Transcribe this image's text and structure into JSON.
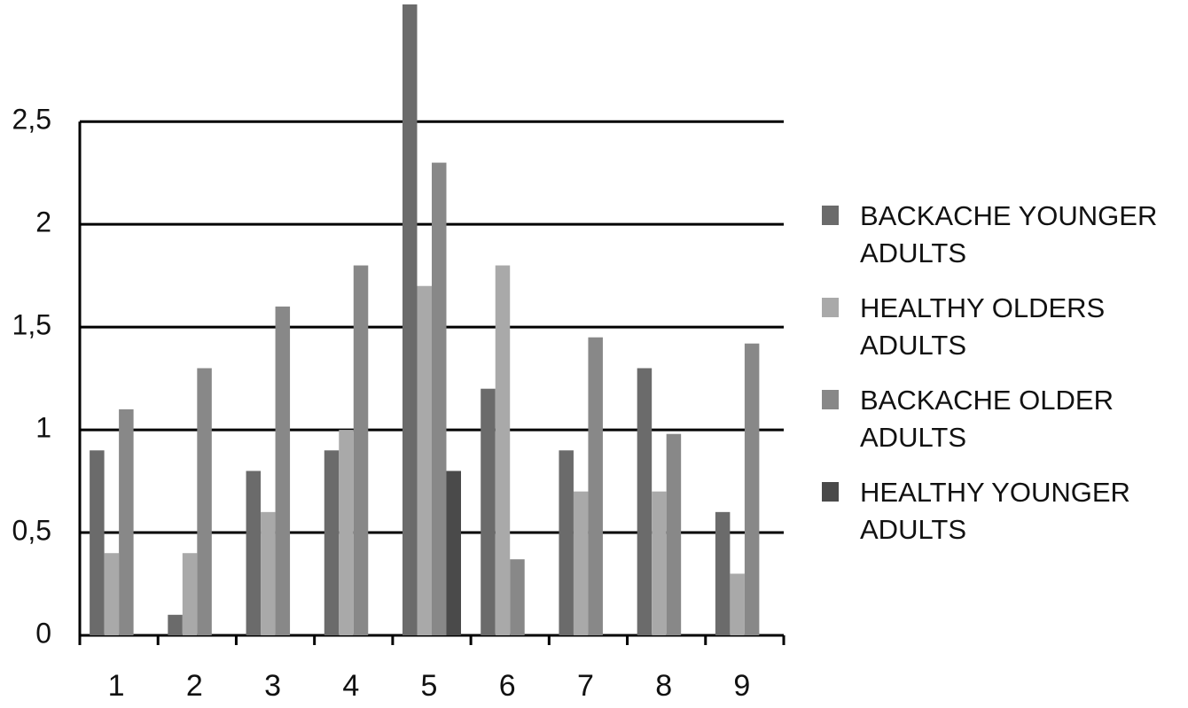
{
  "chart_data": {
    "type": "bar",
    "categories": [
      "1",
      "2",
      "3",
      "4",
      "5",
      "6",
      "7",
      "8",
      "9"
    ],
    "series": [
      {
        "name": "BACKACHE YOUNGER ADULTS",
        "color": "#6b6b6b",
        "values": [
          0.9,
          0.1,
          0.8,
          0.9,
          3.07,
          1.2,
          0.9,
          1.3,
          0.6
        ]
      },
      {
        "name": "HEALTHY OLDERS ADULTS",
        "color": "#a9a9a9",
        "values": [
          0.4,
          0.4,
          0.6,
          1.0,
          1.7,
          1.8,
          0.7,
          0.7,
          0.3
        ]
      },
      {
        "name": "BACKACHE OLDER ADULTS",
        "color": "#888888",
        "values": [
          1.1,
          1.3,
          1.6,
          1.8,
          2.3,
          0.37,
          1.45,
          0.98,
          1.42
        ]
      },
      {
        "name": "HEALTHY YOUNGER ADULTS",
        "color": "#4a4a4a",
        "values": [
          0,
          0,
          0,
          0,
          0.8,
          0,
          0,
          0,
          0
        ]
      }
    ],
    "ylim": [
      0,
      3.07
    ],
    "yticks": [
      0,
      {
        "value": 0.5,
        "label": "0,5"
      },
      1,
      {
        "value": 1.5,
        "label": "1,5"
      },
      2,
      {
        "value": 2.5,
        "label": "2,5"
      }
    ],
    "grid": true,
    "legend": "right"
  }
}
